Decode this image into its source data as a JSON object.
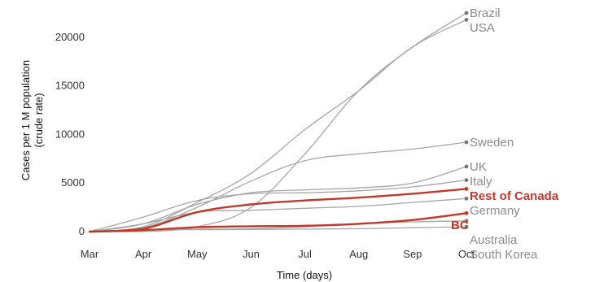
{
  "chart_data": {
    "type": "line",
    "xlabel": "Time (days)",
    "ylabel": "Cases per 1 M population (crude rate)",
    "ylabel_lines": [
      "Cases per 1 M population",
      "(crude rate)"
    ],
    "x_ticks": [
      "Mar",
      "Apr",
      "May",
      "Jun",
      "Jul",
      "Aug",
      "Sep",
      "Oct"
    ],
    "y_ticks": [
      0,
      5000,
      10000,
      15000,
      20000
    ],
    "xlim": [
      "Mar",
      "Oct"
    ],
    "ylim": [
      0,
      23000
    ],
    "grid": false,
    "legend": "none (direct labels at line ends)",
    "colors": {
      "highlight": "#c0392b",
      "other": "#a6a6a6",
      "label_other": "#8c8c8c"
    },
    "series": [
      {
        "name": "Brazil",
        "highlight": false,
        "x": [
          "Mar",
          "Apr",
          "May",
          "Jun",
          "Jul",
          "Aug",
          "Sep",
          "Oct"
        ],
        "values": [
          0,
          0,
          500,
          2500,
          8000,
          14500,
          19000,
          22500
        ]
      },
      {
        "name": "USA",
        "highlight": false,
        "x": [
          "Mar",
          "Apr",
          "May",
          "Jun",
          "Jul",
          "Aug",
          "Sep",
          "Oct"
        ],
        "values": [
          0,
          500,
          3000,
          6000,
          10500,
          14500,
          19000,
          21800
        ]
      },
      {
        "name": "Sweden",
        "highlight": false,
        "x": [
          "Mar",
          "Apr",
          "May",
          "Jun",
          "Jul",
          "Aug",
          "Sep",
          "Oct"
        ],
        "values": [
          0,
          400,
          2500,
          5200,
          7300,
          8000,
          8500,
          9200
        ]
      },
      {
        "name": "UK",
        "highlight": false,
        "x": [
          "Mar",
          "Apr",
          "May",
          "Jun",
          "Jul",
          "Aug",
          "Sep",
          "Oct"
        ],
        "values": [
          0,
          800,
          2800,
          4000,
          4300,
          4500,
          5000,
          6700
        ]
      },
      {
        "name": "Italy",
        "highlight": false,
        "x": [
          "Mar",
          "Apr",
          "May",
          "Jun",
          "Jul",
          "Aug",
          "Sep",
          "Oct"
        ],
        "values": [
          0,
          1500,
          3200,
          3900,
          4000,
          4200,
          4600,
          5300
        ]
      },
      {
        "name": "Rest of Canada",
        "highlight": true,
        "x": [
          "Mar",
          "Apr",
          "May",
          "Jun",
          "Jul",
          "Aug",
          "Sep",
          "Oct"
        ],
        "values": [
          0,
          300,
          2000,
          2800,
          3200,
          3500,
          3900,
          4400
        ]
      },
      {
        "name": "BC",
        "highlight": true,
        "x": [
          "Mar",
          "Apr",
          "May",
          "Jun",
          "Jul",
          "Aug",
          "Sep",
          "Oct"
        ],
        "values": [
          0,
          150,
          450,
          550,
          600,
          800,
          1200,
          1900
        ]
      },
      {
        "name": "Germany",
        "highlight": false,
        "x": [
          "Mar",
          "Apr",
          "May",
          "Jun",
          "Jul",
          "Aug",
          "Sep",
          "Oct"
        ],
        "values": [
          0,
          800,
          2000,
          2200,
          2400,
          2600,
          3000,
          3400
        ]
      },
      {
        "name": "Australia",
        "highlight": false,
        "x": [
          "Mar",
          "Apr",
          "May",
          "Jun",
          "Jul",
          "Aug",
          "Sep",
          "Oct"
        ],
        "values": [
          0,
          200,
          250,
          300,
          500,
          800,
          1000,
          1100
        ]
      },
      {
        "name": "South Korea",
        "highlight": false,
        "x": [
          "Mar",
          "Apr",
          "May",
          "Jun",
          "Jul",
          "Aug",
          "Sep",
          "Oct"
        ],
        "values": [
          0,
          180,
          200,
          220,
          260,
          300,
          400,
          500
        ]
      }
    ]
  }
}
